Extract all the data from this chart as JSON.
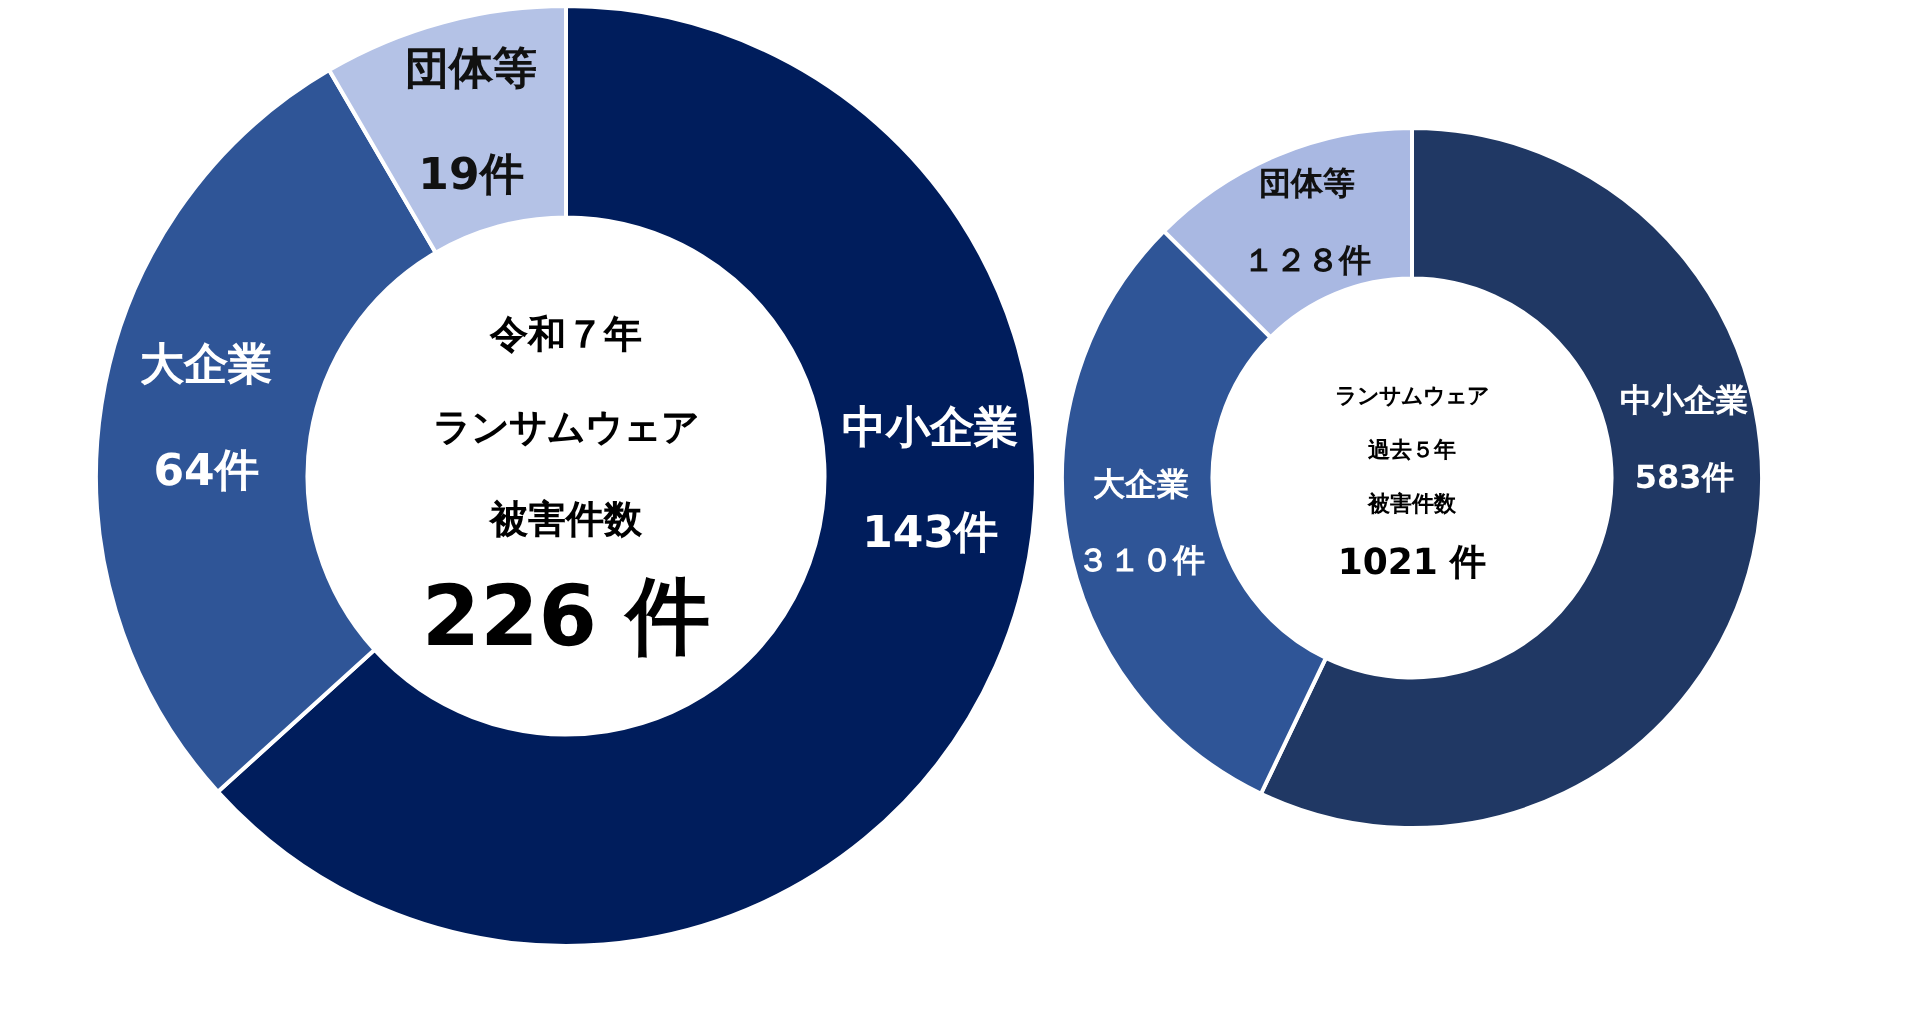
{
  "chart_data": [
    {
      "type": "donut",
      "categories": [
        "中小企業",
        "大企業",
        "団体等"
      ],
      "values": [
        143,
        64,
        19
      ],
      "colors": [
        "#001d5c",
        "#2f5597",
        "#b4c2e6"
      ],
      "value_labels": [
        "143件",
        "64件",
        "19件"
      ],
      "annotations": [
        "令和７年",
        "ランサムウェア",
        "被害件数",
        "226 件"
      ],
      "legend": false
    },
    {
      "type": "donut",
      "categories": [
        "中小企業",
        "大企業",
        "団体等"
      ],
      "values": [
        583,
        310,
        128
      ],
      "colors": [
        "#203864",
        "#2f5597",
        "#a9b8e2"
      ],
      "value_labels": [
        "583件",
        "３１０件",
        "１２８件"
      ],
      "annotations": [
        "ランサムウェア",
        "過去５年",
        "被害件数",
        "1021 件"
      ],
      "legend": false
    }
  ]
}
